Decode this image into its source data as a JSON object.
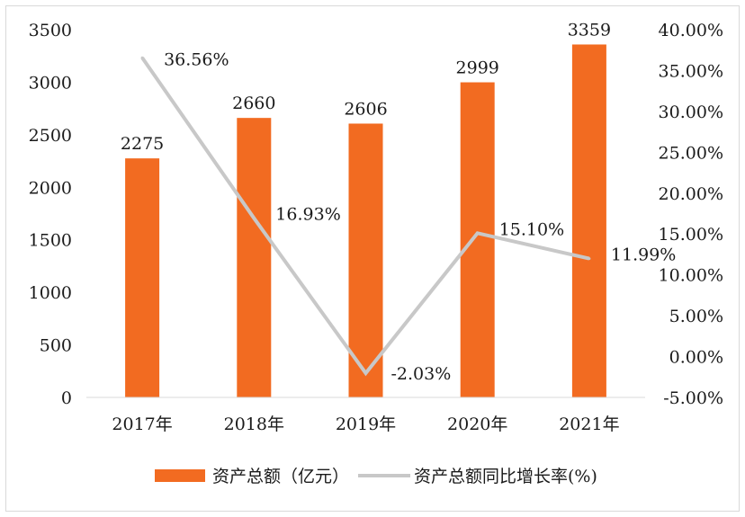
{
  "chart_data": {
    "type": "bar",
    "categories": [
      "2017年",
      "2018年",
      "2019年",
      "2020年",
      "2021年"
    ],
    "series": [
      {
        "name": "资产总额（亿元）",
        "type": "bar",
        "axis": "left",
        "color": "#f26b21",
        "values": [
          2275,
          2660,
          2606,
          2999,
          3359
        ],
        "labels": [
          "2275",
          "2660",
          "2606",
          "2999",
          "3359"
        ]
      },
      {
        "name": "资产总额同比增长率(%)",
        "type": "line",
        "axis": "right",
        "color": "#c8c8c8",
        "values": [
          36.56,
          16.93,
          -2.03,
          15.1,
          11.99
        ],
        "labels": [
          "36.56%",
          "16.93%",
          "-2.03%",
          "15.10%",
          "11.99%"
        ]
      }
    ],
    "y_left": {
      "min": 0,
      "max": 3500,
      "ticks": [
        "0",
        "500",
        "1000",
        "1500",
        "2000",
        "2500",
        "3000",
        "3500"
      ]
    },
    "y_right": {
      "min": -5,
      "max": 40,
      "ticks": [
        "-5.00%",
        "0.00%",
        "5.00%",
        "10.00%",
        "15.00%",
        "20.00%",
        "25.00%",
        "30.00%",
        "35.00%",
        "40.00%"
      ]
    },
    "grid": false,
    "legend_position": "bottom"
  }
}
